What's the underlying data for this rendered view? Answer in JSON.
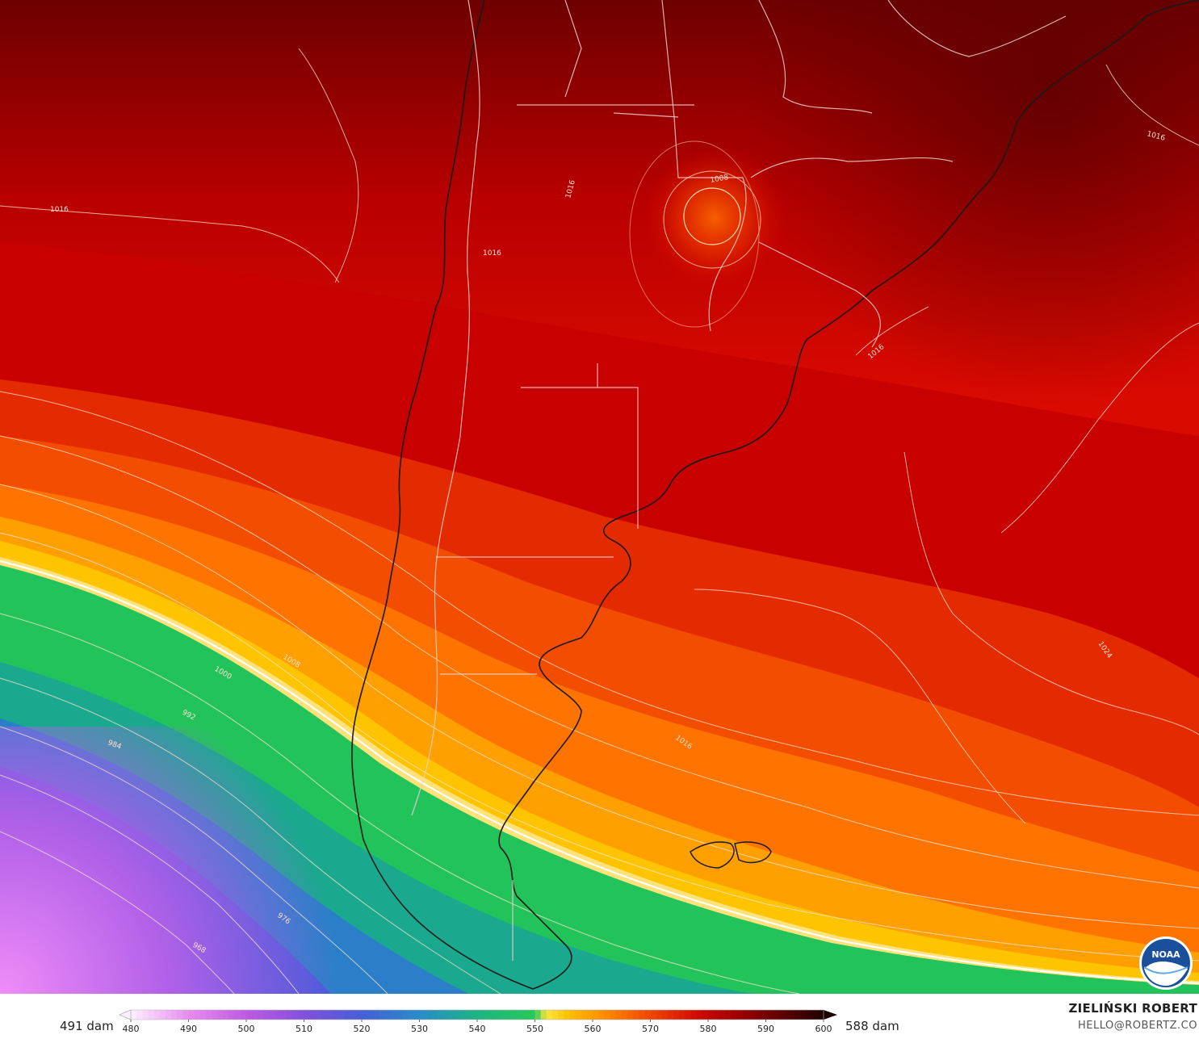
{
  "map": {
    "isobar_labels": [
      {
        "text": "1016",
        "lat_region": "west-north"
      },
      {
        "text": "1016",
        "lat_region": "andes-north"
      },
      {
        "text": "1016",
        "lat_region": "chaco"
      },
      {
        "text": "1008",
        "lat_region": "low-center"
      },
      {
        "text": "1016",
        "lat_region": "east-atlantic-north"
      },
      {
        "text": "1016",
        "lat_region": "uruguay-coast"
      },
      {
        "text": "1024",
        "lat_region": "east-atlantic"
      },
      {
        "text": "1016",
        "lat_region": "argentine-sea"
      },
      {
        "text": "1008",
        "lat_region": "pacific-mid"
      },
      {
        "text": "1000",
        "lat_region": "pacific"
      },
      {
        "text": "992",
        "lat_region": "pacific"
      },
      {
        "text": "984",
        "lat_region": "pacific"
      },
      {
        "text": "976",
        "lat_region": "south-pacific"
      },
      {
        "text": "968",
        "lat_region": "south-pacific"
      }
    ],
    "colors": {
      "deep_red": "#7a0000",
      "red": "#d40000",
      "orange": "#ff8c00",
      "yellow": "#ffd200",
      "green": "#1fbf5f",
      "teal": "#1aa89c",
      "blue": "#3a5ccf",
      "purple": "#8a4ee0",
      "magenta": "#e47cf0"
    }
  },
  "legend": {
    "min_label": "491 dam",
    "max_label": "588 dam",
    "ticks": [
      "480",
      "490",
      "500",
      "510",
      "520",
      "530",
      "540",
      "550",
      "560",
      "570",
      "580",
      "590",
      "600"
    ],
    "tick_values": [
      480,
      490,
      500,
      510,
      520,
      530,
      540,
      550,
      560,
      570,
      580,
      590,
      600
    ],
    "range": [
      480,
      600
    ]
  },
  "credit": {
    "name": "ZIELIŃSKI ROBERT",
    "email": "HELLO@ROBERTZ.CO"
  },
  "logo": {
    "icon": "noaa-logo-icon",
    "text": "NOAA"
  }
}
